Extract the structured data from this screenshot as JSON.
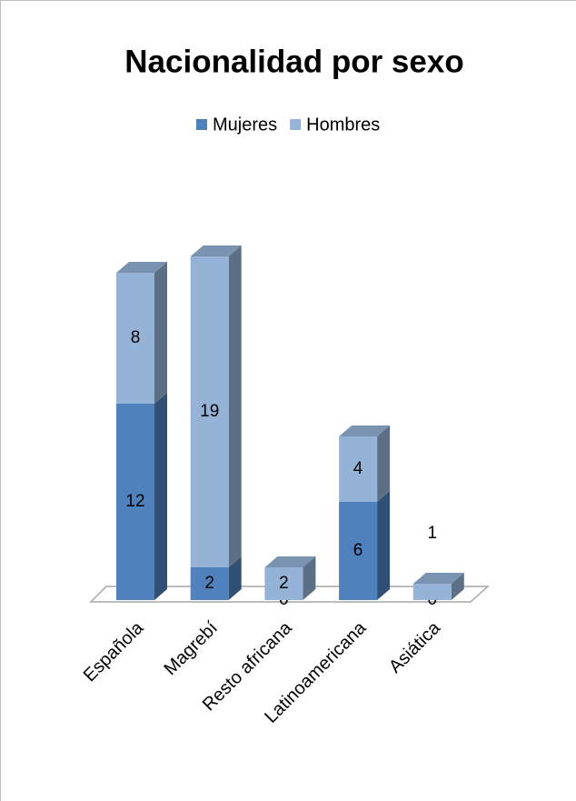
{
  "chart_data": {
    "type": "bar3d_stacked",
    "title": "Nacionalidad por sexo",
    "categories": [
      "Española",
      "Magrebí",
      "Resto africana",
      "Latinoamericana",
      "Asiática"
    ],
    "series": [
      {
        "name": "Mujeres",
        "color": "#4f81bd",
        "values": [
          12,
          2,
          0,
          6,
          0
        ]
      },
      {
        "name": "Hombres",
        "color": "#95b3d7",
        "values": [
          8,
          19,
          2,
          4,
          1
        ]
      }
    ],
    "legend": "top"
  }
}
